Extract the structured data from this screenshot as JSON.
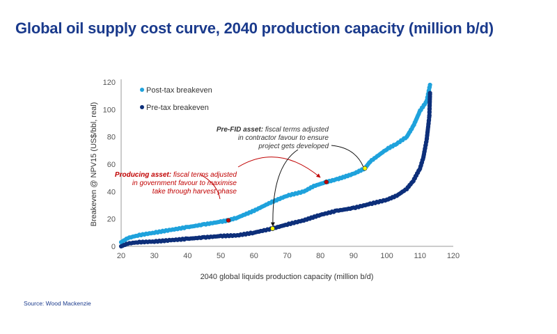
{
  "title": "Global oil supply cost curve, 2040 production capacity (million b/d)",
  "source": "Source: Wood Mackenzie",
  "chart_data": {
    "type": "scatter",
    "title": "Global oil supply cost curve, 2040 production capacity (million b/d)",
    "xlabel": "2040 global liquids production capacity (million b/d)",
    "ylabel": "Breakeven @ NPV15 (US$/bbl, real)",
    "xlim": [
      20,
      120
    ],
    "ylim": [
      0,
      120
    ],
    "xticks": [
      20,
      30,
      40,
      50,
      60,
      70,
      80,
      90,
      100,
      110,
      120
    ],
    "yticks": [
      0,
      20,
      40,
      60,
      80,
      100,
      120
    ],
    "legend_position": "top-left",
    "series": [
      {
        "name": "Post-tax breakeven",
        "color": "#1fa2dc",
        "points": [
          [
            20,
            3
          ],
          [
            22,
            6
          ],
          [
            25,
            8
          ],
          [
            30,
            10
          ],
          [
            35,
            12
          ],
          [
            40,
            14
          ],
          [
            45,
            16
          ],
          [
            50,
            18
          ],
          [
            52.3,
            19
          ],
          [
            55,
            21
          ],
          [
            60,
            26
          ],
          [
            65,
            32
          ],
          [
            70,
            37
          ],
          [
            75,
            40
          ],
          [
            78,
            44
          ],
          [
            81.8,
            47
          ],
          [
            85,
            49
          ],
          [
            90,
            53
          ],
          [
            93.4,
            57
          ],
          [
            95,
            62
          ],
          [
            100,
            71
          ],
          [
            103,
            75
          ],
          [
            106,
            80
          ],
          [
            108,
            88
          ],
          [
            110,
            99
          ],
          [
            112,
            106
          ],
          [
            113,
            118
          ]
        ]
      },
      {
        "name": "Pre-tax breakeven",
        "color": "#0d2f7a",
        "points": [
          [
            20,
            0
          ],
          [
            22,
            2
          ],
          [
            25,
            3
          ],
          [
            30,
            3.5
          ],
          [
            35,
            4.5
          ],
          [
            40,
            5.5
          ],
          [
            45,
            6.5
          ],
          [
            50,
            7.5
          ],
          [
            55,
            8
          ],
          [
            60,
            10
          ],
          [
            65.6,
            13
          ],
          [
            70,
            16
          ],
          [
            75,
            19
          ],
          [
            80,
            23
          ],
          [
            85,
            26
          ],
          [
            90,
            28
          ],
          [
            95,
            31
          ],
          [
            100,
            34
          ],
          [
            103,
            37
          ],
          [
            106,
            42
          ],
          [
            108,
            48
          ],
          [
            110,
            57
          ],
          [
            111,
            65
          ],
          [
            112,
            78
          ],
          [
            112.8,
            95
          ],
          [
            113,
            112
          ]
        ]
      }
    ],
    "highlights": [
      {
        "x": 52.3,
        "y": 19,
        "color": "#c00000"
      },
      {
        "x": 81.8,
        "y": 47,
        "color": "#c00000"
      },
      {
        "x": 65.6,
        "y": 13,
        "color": "#ffff00"
      },
      {
        "x": 93.4,
        "y": 57,
        "color": "#ffff00"
      }
    ],
    "annotations": [
      {
        "bold": "Producing asset:",
        "lines": [
          "fiscal terms adjusted",
          "in government favour to maximise",
          "take through harvest phase"
        ],
        "color": "#c00000"
      },
      {
        "bold": "Pre-FID asset:",
        "lines": [
          "fiscal terms adjusted",
          "in contractor favour to ensure",
          "project gets developed"
        ],
        "color": "#333333"
      }
    ]
  }
}
